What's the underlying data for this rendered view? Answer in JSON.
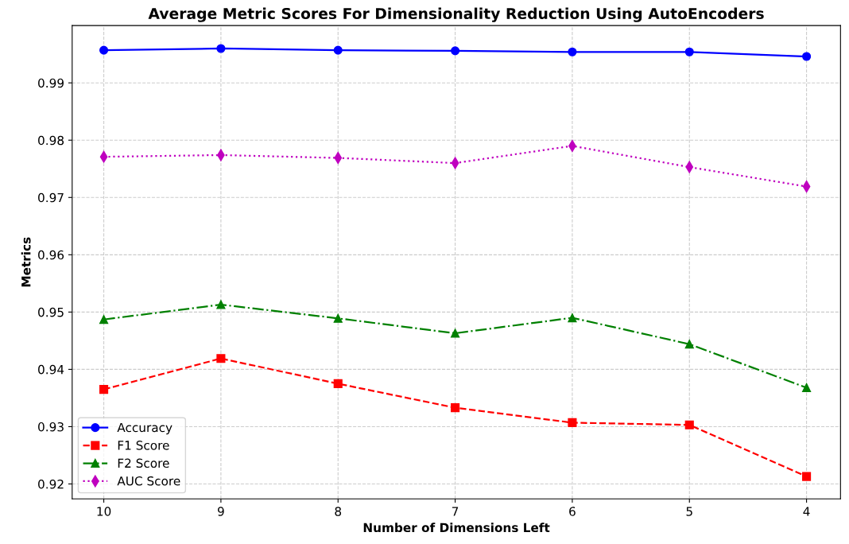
{
  "chart_data": {
    "type": "line",
    "title": "Average Metric Scores For Dimensionality Reduction Using AutoEncoders",
    "xlabel": "Number of Dimensions Left",
    "ylabel": "Metrics",
    "x": [
      10,
      9,
      8,
      7,
      6,
      5,
      4
    ],
    "xlim": [
      10.27,
      3.71
    ],
    "xticks": [
      10,
      9,
      8,
      7,
      6,
      5,
      4
    ],
    "ylim": [
      0.9174,
      1.0
    ],
    "yticks": [
      0.92,
      0.93,
      0.94,
      0.95,
      0.96,
      0.97,
      0.98,
      0.99
    ],
    "grid": true,
    "legend": "bottom left",
    "series": [
      {
        "name": "Accuracy",
        "color": "#0000ff",
        "marker": "circle",
        "line_style": "solid",
        "values": [
          0.9957,
          0.996,
          0.9957,
          0.9956,
          0.9954,
          0.9954,
          0.9946
        ]
      },
      {
        "name": "F1 Score",
        "color": "#ff0000",
        "marker": "square",
        "line_style": "dashed",
        "values": [
          0.9365,
          0.9419,
          0.9375,
          0.9333,
          0.9307,
          0.9303,
          0.9213
        ]
      },
      {
        "name": "F2 Score",
        "color": "#008000",
        "marker": "triangle",
        "line_style": "dashdot",
        "values": [
          0.9487,
          0.9513,
          0.9489,
          0.9463,
          0.949,
          0.9444,
          0.9368
        ]
      },
      {
        "name": "AUC Score",
        "color": "#bf00bf",
        "marker": "diamond",
        "line_style": "dotted",
        "values": [
          0.9771,
          0.9774,
          0.9769,
          0.976,
          0.979,
          0.9753,
          0.9719
        ]
      }
    ]
  }
}
